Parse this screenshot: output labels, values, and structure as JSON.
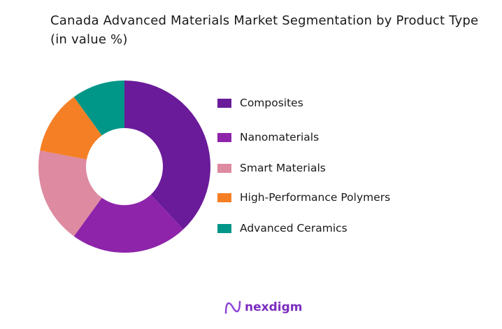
{
  "chart_data": {
    "type": "donut",
    "title": "Canada Advanced Materials Market Segmentation by Product Type (in value %)",
    "categories": [
      "Composites",
      "Nanomaterials",
      "Smart Materials",
      "High-Performance Polymers",
      "Advanced Ceramics"
    ],
    "values": [
      38,
      22,
      18,
      12,
      10
    ],
    "colors": [
      "#6a1b9a",
      "#8e24aa",
      "#de8aa0",
      "#f57f25",
      "#009688"
    ],
    "legend": "right"
  },
  "brand": {
    "name": "nexdigm",
    "color": "#7b2cbf"
  }
}
